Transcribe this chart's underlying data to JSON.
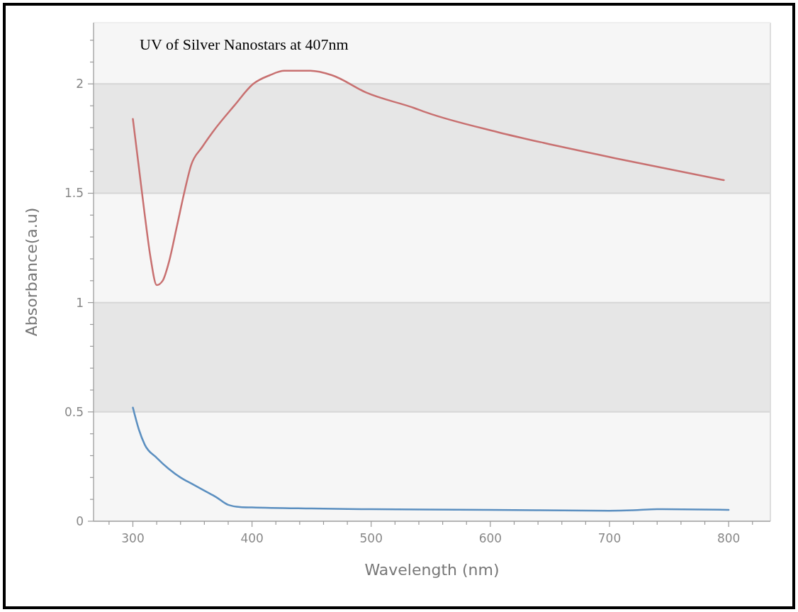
{
  "chart_data": {
    "type": "line",
    "title": "UV of Silver Nanostars at 407nm",
    "xlabel": "Wavelength (nm)",
    "ylabel": "Absorbance(a.u)",
    "xlim": [
      267,
      835
    ],
    "ylim": [
      0,
      2.28
    ],
    "xticks": [
      {
        "value": 280,
        "label": null
      },
      300,
      {
        "value": 320,
        "label": null
      },
      {
        "value": 340,
        "label": null
      },
      {
        "value": 360,
        "label": null
      },
      {
        "value": 380,
        "label": null
      },
      400,
      {
        "value": 420,
        "label": null
      },
      {
        "value": 440,
        "label": null
      },
      {
        "value": 460,
        "label": null
      },
      {
        "value": 480,
        "label": null
      },
      500,
      {
        "value": 520,
        "label": null
      },
      {
        "value": 540,
        "label": null
      },
      {
        "value": 560,
        "label": null
      },
      {
        "value": 580,
        "label": null
      },
      600,
      {
        "value": 620,
        "label": null
      },
      {
        "value": 640,
        "label": null
      },
      {
        "value": 660,
        "label": null
      },
      {
        "value": 680,
        "label": null
      },
      700,
      {
        "value": 720,
        "label": null
      },
      {
        "value": 740,
        "label": null
      },
      {
        "value": 760,
        "label": null
      },
      {
        "value": 780,
        "label": null
      },
      800,
      {
        "value": 820,
        "label": null
      }
    ],
    "yticks": [
      0,
      {
        "value": 0.1,
        "label": null
      },
      {
        "value": 0.2,
        "label": null
      },
      {
        "value": 0.3,
        "label": null
      },
      {
        "value": 0.4,
        "label": null
      },
      0.5,
      {
        "value": 0.6,
        "label": null
      },
      {
        "value": 0.7,
        "label": null
      },
      {
        "value": 0.8,
        "label": null
      },
      {
        "value": 0.9,
        "label": null
      },
      1,
      {
        "value": 1.1,
        "label": null
      },
      {
        "value": 1.2,
        "label": null
      },
      {
        "value": 1.3,
        "label": null
      },
      {
        "value": 1.4,
        "label": null
      },
      1.5,
      {
        "value": 1.6,
        "label": null
      },
      {
        "value": 1.7,
        "label": null
      },
      {
        "value": 1.8,
        "label": null
      },
      {
        "value": 1.9,
        "label": null
      },
      2,
      {
        "value": 2.1,
        "label": null
      },
      {
        "value": 2.2,
        "label": null
      }
    ],
    "grid": "y",
    "marker": "none",
    "line_style": "solid",
    "bands": [
      {
        "axis": "y",
        "from": 0.5,
        "to": 1,
        "color": "#e6e6e6"
      },
      {
        "axis": "y",
        "from": 1.5,
        "to": 2,
        "color": "#e6e6e6"
      }
    ],
    "series": [
      {
        "color": "#c87070",
        "x": [
          300,
          305,
          310,
          315,
          320,
          325,
          330,
          337,
          343,
          349,
          358,
          367,
          385,
          401,
          415,
          427,
          449,
          467,
          496,
          536,
          546,
          606,
          645,
          705,
          750,
          796
        ],
        "values": [
          1.84,
          1.62,
          1.4,
          1.2,
          1.08,
          1.1,
          1.18,
          1.35,
          1.5,
          1.63,
          1.71,
          1.78,
          1.9,
          2.0,
          2.04,
          2.06,
          2.06,
          2.04,
          1.96,
          1.89,
          1.87,
          1.78,
          1.73,
          1.66,
          1.61,
          1.56
        ]
      },
      {
        "color": "#5b8fc0",
        "x": [
          300,
          305,
          310,
          320,
          330,
          340,
          350,
          360,
          370,
          380,
          390,
          400,
          450,
          500,
          600,
          700,
          720,
          740,
          800
        ],
        "values": [
          0.52,
          0.42,
          0.35,
          0.29,
          0.24,
          0.2,
          0.17,
          0.14,
          0.11,
          0.075,
          0.065,
          0.063,
          0.058,
          0.055,
          0.052,
          0.048,
          0.05,
          0.055,
          0.052
        ]
      }
    ]
  }
}
